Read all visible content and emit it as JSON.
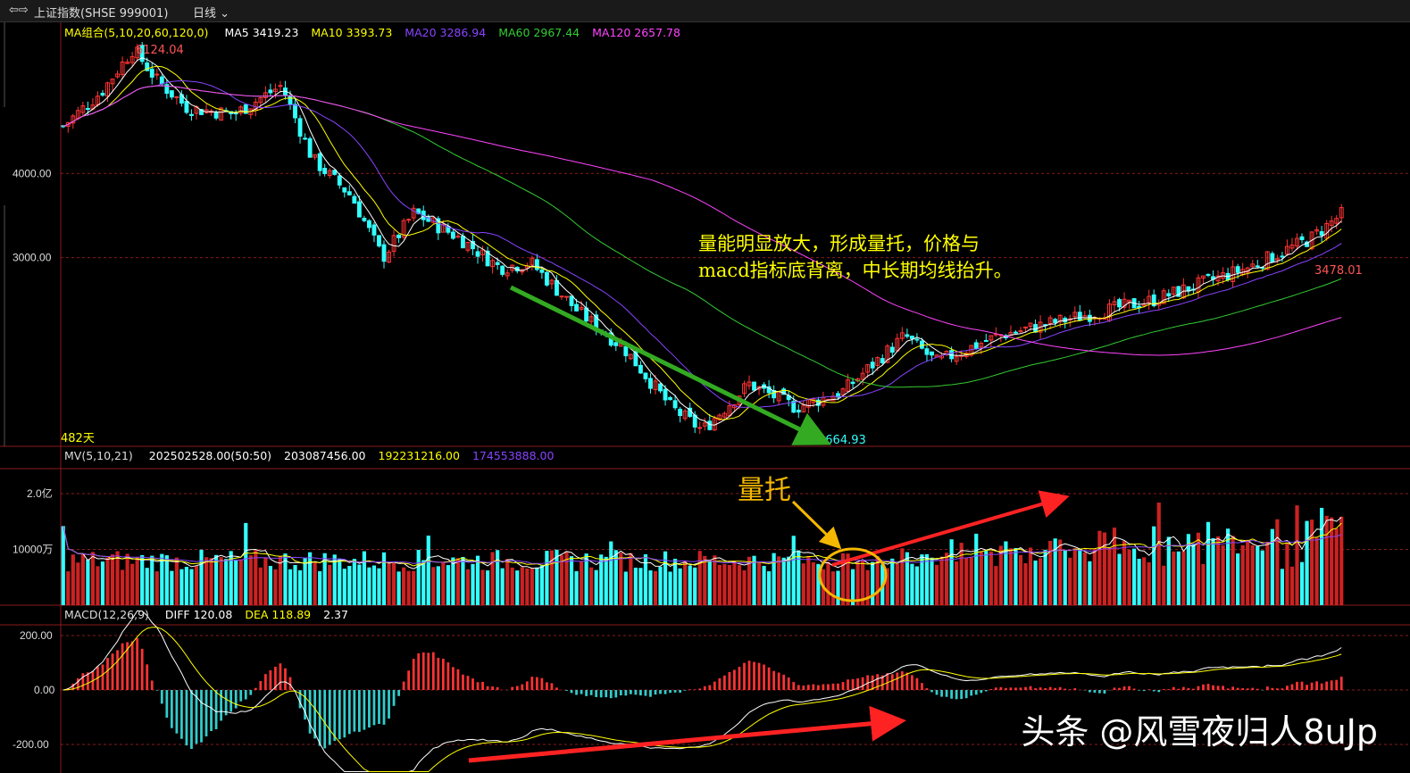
{
  "header": {
    "back_icon": "back-arrows-icon",
    "title": "上证指数(SHSE 999001)",
    "period": "日线",
    "period_icon": "chevron-down-icon"
  },
  "price_panel": {
    "legend_name": "MA组合(5,10,20,60,120,0)",
    "ma": [
      {
        "label": "MA5 3419.23",
        "color": "#ffffff"
      },
      {
        "label": "MA10 3393.73",
        "color": "#ffff00"
      },
      {
        "label": "MA20 3286.94",
        "color": "#8844ff"
      },
      {
        "label": "MA60 2967.44",
        "color": "#33cc33"
      },
      {
        "label": "MA120 2657.78",
        "color": "#ff44ff"
      }
    ],
    "high_label": "6124.04",
    "low_label": "1664.93",
    "recent_label": "3478.01",
    "days_label": "482天",
    "yticks": [
      "4000.00",
      "3000.00"
    ],
    "annotation_lines": [
      "量能明显放大，形成量托，价格与",
      "macd指标底背离，中长期均线抬升。"
    ]
  },
  "volume_panel": {
    "legend_name": "MV(5,10,21)",
    "values": [
      {
        "label": "202502528.00(50:50)",
        "color": "#ffffff"
      },
      {
        "label": "203087456.00",
        "color": "#ffffff"
      },
      {
        "label": "192231216.00",
        "color": "#ffff00"
      },
      {
        "label": "174553888.00",
        "color": "#8844ff"
      }
    ],
    "yticks": [
      "2.0亿",
      "10000万"
    ],
    "annotation": "量托"
  },
  "macd_panel": {
    "legend_name": "MACD(12,26,9)",
    "values": [
      {
        "label": "DIFF 120.08",
        "color": "#ffffff"
      },
      {
        "label": "DEA 118.89",
        "color": "#ffff00"
      },
      {
        "label": "2.37",
        "color": "#ffffff"
      }
    ],
    "yticks": [
      "200.00",
      "0.00",
      "-200.00"
    ]
  },
  "watermark": "头条 @风雪夜归人8uJp",
  "colors": {
    "up": "#ff3333",
    "down": "#33ffff",
    "arrow_green": "#33aa22",
    "arrow_red": "#ff2222",
    "circle": "#f5b800"
  },
  "chart_data": {
    "type": "candlestick",
    "series_approx_close_keypoints": [
      [
        0,
        4700
      ],
      [
        25,
        5300
      ],
      [
        45,
        6124.04
      ],
      [
        60,
        5500
      ],
      [
        80,
        5000
      ],
      [
        110,
        4900
      ],
      [
        140,
        5400
      ],
      [
        160,
        4200
      ],
      [
        185,
        3700
      ],
      [
        205,
        3000
      ],
      [
        225,
        3500
      ],
      [
        255,
        3200
      ],
      [
        280,
        2900
      ],
      [
        300,
        2950
      ],
      [
        330,
        2500
      ],
      [
        360,
        2200
      ],
      [
        390,
        1800
      ],
      [
        410,
        1664.93
      ],
      [
        440,
        1950
      ],
      [
        470,
        1800
      ],
      [
        500,
        1900
      ],
      [
        540,
        2300
      ],
      [
        560,
        2100
      ],
      [
        600,
        2300
      ],
      [
        650,
        2450
      ],
      [
        700,
        2600
      ],
      [
        760,
        2900
      ],
      [
        800,
        3200
      ],
      [
        820,
        3478.01
      ]
    ],
    "volume_axis": {
      "ticks": [
        "10000万",
        "2.0亿"
      ]
    },
    "macd_axis": {
      "ticks": [
        200,
        0,
        -200
      ]
    }
  }
}
